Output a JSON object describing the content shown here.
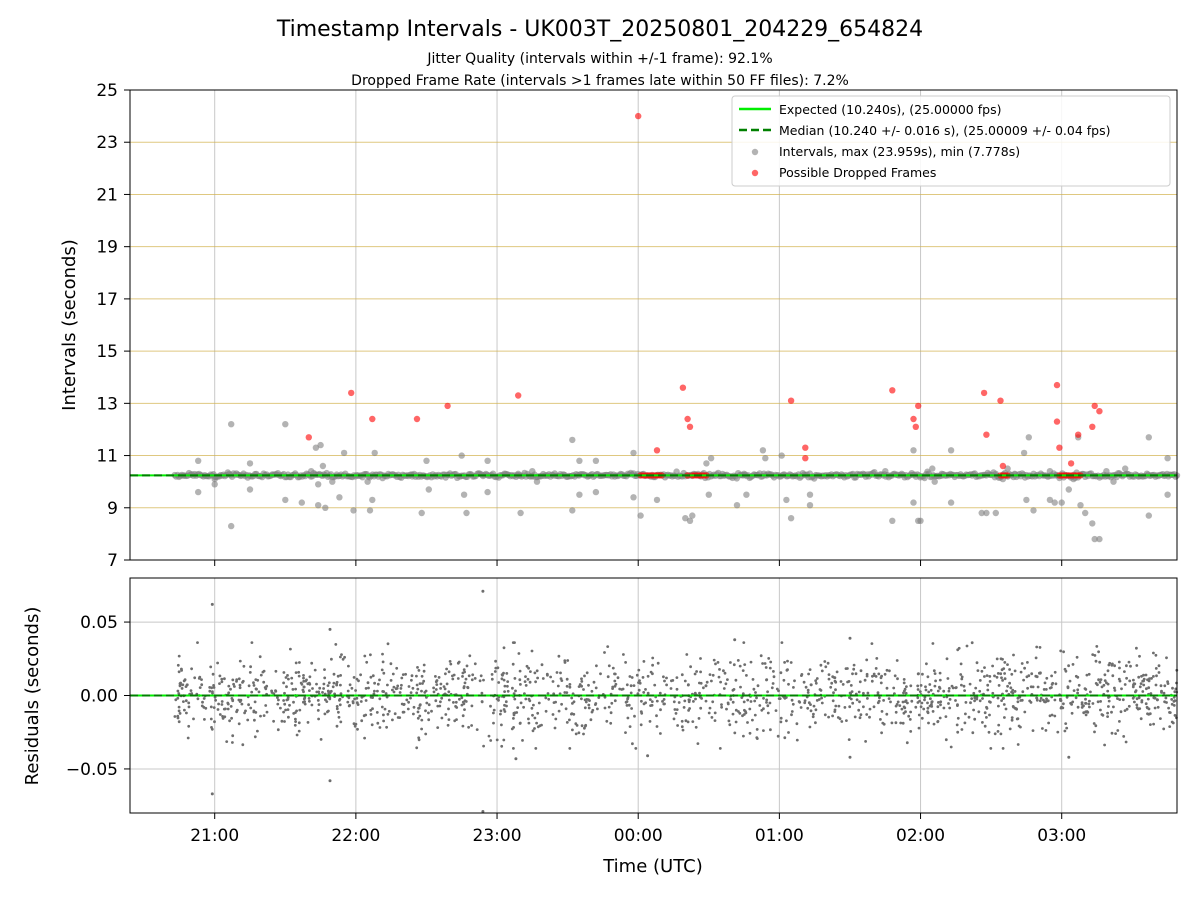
{
  "figure": {
    "title": "Timestamp Intervals - UK003T_20250801_204229_654824",
    "subtitle_1": "Jitter Quality (intervals within +/-1 frame): 92.1%",
    "subtitle_2": "Dropped Frame Rate (intervals >1 frames late within 50 FF files): 7.2%"
  },
  "chart_data": [
    {
      "type": "scatter",
      "panel": "top",
      "ylabel": "Intervals (seconds)",
      "ylim": [
        7,
        25
      ],
      "yticks": [
        7,
        9,
        11,
        13,
        15,
        17,
        19,
        21,
        23,
        25
      ],
      "grid": true,
      "legend_position": "top-right",
      "lines": [
        {
          "name": "Expected (10.240s), (25.00000 fps)",
          "y": 10.24,
          "style": "solid",
          "color": "#00ee00"
        },
        {
          "name": "Median (10.240 +/- 0.016 s), (25.00009 +/- 0.04 fps)",
          "y": 10.24,
          "style": "dashed",
          "color": "#008000"
        }
      ],
      "series": [
        {
          "name": "Intervals, max (23.959s), min (7.778s)",
          "color": "#808080",
          "points": [
            [
              "20:53",
              10.8
            ],
            [
              "20:53",
              9.6
            ],
            [
              "21:00",
              10.1
            ],
            [
              "21:00",
              9.9
            ],
            [
              "21:07",
              12.2
            ],
            [
              "21:07",
              8.3
            ],
            [
              "21:15",
              10.7
            ],
            [
              "21:15",
              9.7
            ],
            [
              "21:30",
              12.2
            ],
            [
              "21:30",
              9.3
            ],
            [
              "21:37",
              9.2
            ],
            [
              "21:41",
              10.4
            ],
            [
              "21:43",
              11.3
            ],
            [
              "21:44",
              9.9
            ],
            [
              "21:44",
              9.1
            ],
            [
              "21:45",
              11.4
            ],
            [
              "21:46",
              10.6
            ],
            [
              "21:47",
              9.0
            ],
            [
              "21:50",
              10.0
            ],
            [
              "21:53",
              9.4
            ],
            [
              "21:55",
              11.1
            ],
            [
              "21:59",
              8.9
            ],
            [
              "22:05",
              10.0
            ],
            [
              "22:06",
              8.9
            ],
            [
              "22:07",
              9.3
            ],
            [
              "22:08",
              11.1
            ],
            [
              "22:24",
              10.2
            ],
            [
              "22:28",
              8.8
            ],
            [
              "22:30",
              10.8
            ],
            [
              "22:31",
              9.7
            ],
            [
              "22:45",
              11.0
            ],
            [
              "22:46",
              9.5
            ],
            [
              "22:47",
              8.8
            ],
            [
              "22:56",
              10.8
            ],
            [
              "22:56",
              9.6
            ],
            [
              "23:09",
              10.3
            ],
            [
              "23:10",
              8.8
            ],
            [
              "23:15",
              10.4
            ],
            [
              "23:17",
              10.0
            ],
            [
              "23:32",
              11.6
            ],
            [
              "23:32",
              8.9
            ],
            [
              "23:35",
              9.5
            ],
            [
              "23:35",
              10.8
            ],
            [
              "23:42",
              10.8
            ],
            [
              "23:42",
              9.6
            ],
            [
              "23:58",
              11.1
            ],
            [
              "23:58",
              9.4
            ],
            [
              "00:01",
              8.7
            ],
            [
              "00:08",
              9.3
            ],
            [
              "00:20",
              8.6
            ],
            [
              "00:22",
              8.5
            ],
            [
              "00:23",
              8.7
            ],
            [
              "00:29",
              10.7
            ],
            [
              "00:30",
              9.5
            ],
            [
              "00:31",
              10.9
            ],
            [
              "00:42",
              9.1
            ],
            [
              "00:45",
              10.3
            ],
            [
              "00:46",
              9.5
            ],
            [
              "00:53",
              11.2
            ],
            [
              "00:54",
              10.9
            ],
            [
              "01:01",
              11.0
            ],
            [
              "01:03",
              9.3
            ],
            [
              "01:05",
              8.6
            ],
            [
              "01:13",
              9.1
            ],
            [
              "01:13",
              9.5
            ],
            [
              "01:45",
              10.4
            ],
            [
              "01:48",
              8.5
            ],
            [
              "01:57",
              11.2
            ],
            [
              "01:57",
              9.2
            ],
            [
              "01:59",
              8.5
            ],
            [
              "02:00",
              8.5
            ],
            [
              "02:05",
              10.5
            ],
            [
              "02:06",
              10.0
            ],
            [
              "02:09",
              10.3
            ],
            [
              "02:13",
              11.2
            ],
            [
              "02:13",
              9.2
            ],
            [
              "02:26",
              8.8
            ],
            [
              "02:28",
              8.8
            ],
            [
              "02:32",
              10.3
            ],
            [
              "02:32",
              8.8
            ],
            [
              "02:35",
              10.1
            ],
            [
              "02:37",
              10.5
            ],
            [
              "02:40",
              10.3
            ],
            [
              "02:44",
              11.1
            ],
            [
              "02:45",
              9.3
            ],
            [
              "02:46",
              11.7
            ],
            [
              "02:48",
              8.9
            ],
            [
              "02:55",
              10.4
            ],
            [
              "02:55",
              9.3
            ],
            [
              "02:57",
              9.2
            ],
            [
              "03:00",
              9.2
            ],
            [
              "03:03",
              9.7
            ],
            [
              "03:05",
              10.1
            ],
            [
              "03:07",
              11.7
            ],
            [
              "03:08",
              9.1
            ],
            [
              "03:10",
              8.8
            ],
            [
              "03:13",
              8.4
            ],
            [
              "03:14",
              7.8
            ],
            [
              "03:16",
              7.8
            ],
            [
              "03:19",
              10.4
            ],
            [
              "03:22",
              10.0
            ],
            [
              "03:27",
              10.5
            ],
            [
              "03:37",
              11.7
            ],
            [
              "03:37",
              8.7
            ],
            [
              "03:45",
              10.9
            ],
            [
              "03:45",
              9.5
            ]
          ]
        },
        {
          "name": "Possible Dropped Frames",
          "color": "#ff0000",
          "points": [
            [
              "21:40",
              11.7
            ],
            [
              "21:58",
              13.4
            ],
            [
              "22:07",
              12.4
            ],
            [
              "22:26",
              12.4
            ],
            [
              "22:39",
              12.9
            ],
            [
              "23:09",
              13.3
            ],
            [
              "00:00",
              24.0
            ],
            [
              "00:08",
              11.2
            ],
            [
              "00:19",
              13.6
            ],
            [
              "00:21",
              12.4
            ],
            [
              "00:22",
              12.1
            ],
            [
              "01:05",
              13.1
            ],
            [
              "01:11",
              11.3
            ],
            [
              "01:11",
              10.9
            ],
            [
              "01:48",
              13.5
            ],
            [
              "01:57",
              12.4
            ],
            [
              "01:58",
              12.1
            ],
            [
              "01:59",
              12.9
            ],
            [
              "02:27",
              13.4
            ],
            [
              "02:28",
              11.8
            ],
            [
              "02:34",
              13.1
            ],
            [
              "02:35",
              10.6
            ],
            [
              "02:58",
              13.7
            ],
            [
              "02:58",
              12.3
            ],
            [
              "02:59",
              11.3
            ],
            [
              "03:04",
              10.7
            ],
            [
              "03:07",
              11.8
            ],
            [
              "03:13",
              12.1
            ],
            [
              "03:14",
              12.9
            ],
            [
              "03:16",
              12.7
            ],
            [
              "00:01",
              10.24
            ],
            [
              "00:02",
              10.24
            ],
            [
              "00:03",
              10.24
            ],
            [
              "00:04",
              10.24
            ],
            [
              "00:05",
              10.24
            ],
            [
              "00:06",
              10.24
            ],
            [
              "00:07",
              10.24
            ],
            [
              "00:08",
              10.24
            ],
            [
              "00:09",
              10.24
            ],
            [
              "00:10",
              10.24
            ],
            [
              "00:21",
              10.24
            ],
            [
              "00:23",
              10.24
            ],
            [
              "00:24",
              10.24
            ],
            [
              "00:25",
              10.24
            ],
            [
              "00:26",
              10.24
            ],
            [
              "00:27",
              10.24
            ],
            [
              "00:28",
              10.24
            ],
            [
              "00:29",
              10.24
            ],
            [
              "02:34",
              10.24
            ],
            [
              "02:35",
              10.24
            ],
            [
              "02:36",
              10.24
            ],
            [
              "02:37",
              10.24
            ],
            [
              "02:59",
              10.24
            ],
            [
              "03:00",
              10.24
            ],
            [
              "03:01",
              10.24
            ],
            [
              "03:02",
              10.24
            ],
            [
              "03:03",
              10.24
            ],
            [
              "03:04",
              10.24
            ],
            [
              "03:05",
              10.24
            ],
            [
              "03:06",
              10.24
            ],
            [
              "03:07",
              10.24
            ],
            [
              "03:08",
              10.24
            ]
          ]
        }
      ]
    },
    {
      "type": "scatter",
      "panel": "bottom",
      "xlabel": "Time (UTC)",
      "ylabel": "Residuals (seconds)",
      "ylim": [
        -0.08,
        0.08
      ],
      "yticks": [
        -0.05,
        0.0,
        0.05
      ],
      "ytick_labels": [
        "−0.05",
        "0.00",
        "0.05"
      ],
      "xlim": [
        "20:24",
        "03:49"
      ],
      "xticks": [
        "21:00",
        "22:00",
        "23:00",
        "00:00",
        "01:00",
        "02:00",
        "03:00"
      ],
      "grid": true,
      "zero_line_color": "#00ee00",
      "residual_color": "#6e6e6e",
      "residual_range": [
        "20:43",
        "03:49"
      ],
      "residual_outliers": [
        [
          "20:59",
          0.062
        ],
        [
          "20:59",
          -0.067
        ],
        [
          "21:49",
          0.045
        ],
        [
          "21:49",
          -0.058
        ],
        [
          "22:54",
          0.071
        ],
        [
          "22:54",
          -0.079
        ],
        [
          "23:08",
          -0.043
        ],
        [
          "00:04",
          -0.041
        ],
        [
          "00:41",
          0.038
        ],
        [
          "01:30",
          0.039
        ],
        [
          "01:30",
          -0.042
        ],
        [
          "03:03",
          -0.042
        ]
      ]
    }
  ]
}
